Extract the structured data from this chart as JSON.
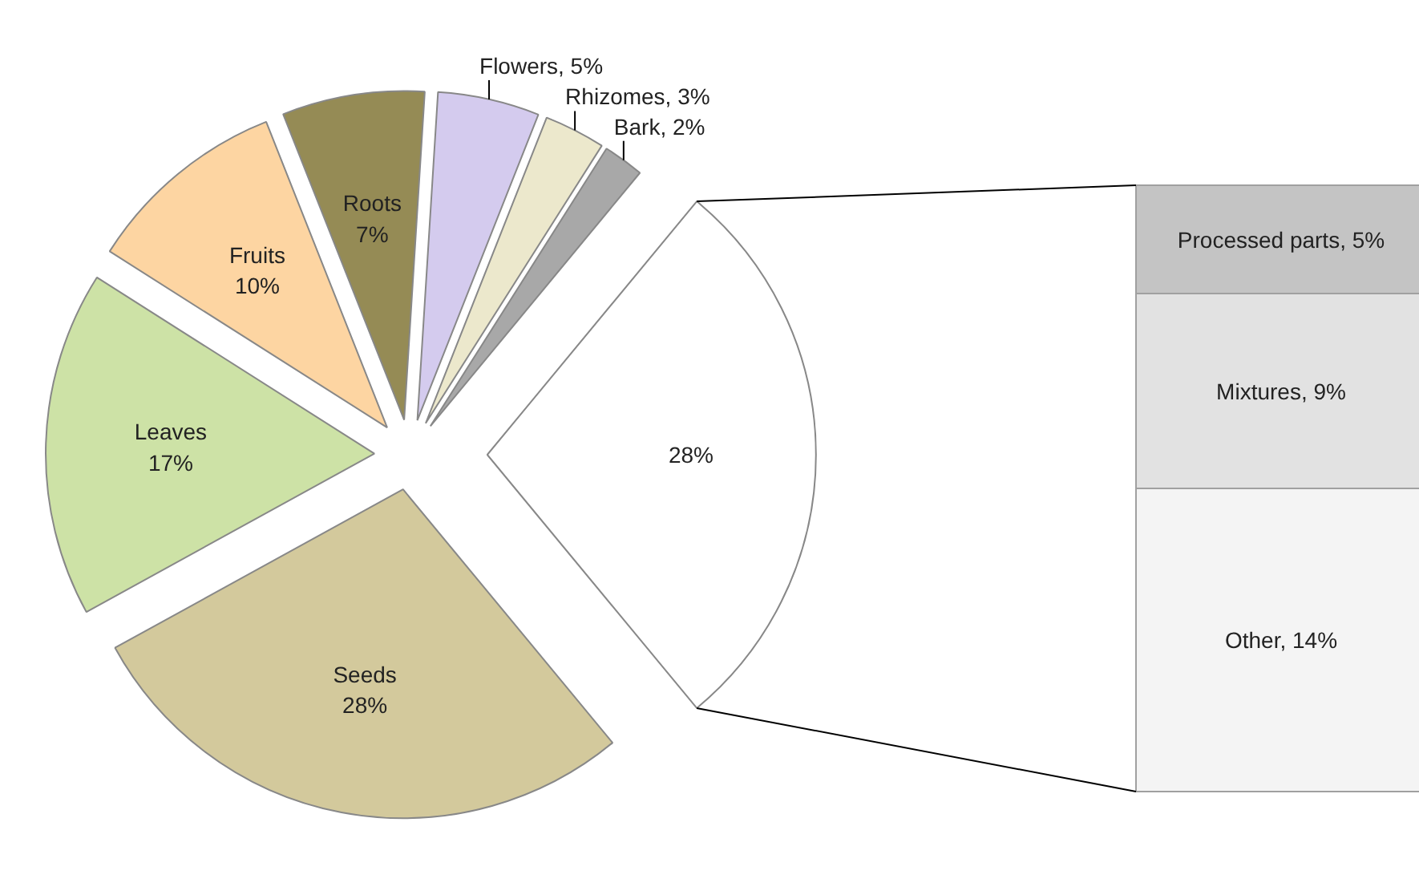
{
  "chart_data": [
    {
      "type": "pie",
      "categories": [
        "Seeds",
        "Leaves",
        "Fruits",
        "Roots",
        "Flowers",
        "Rhizomes",
        "Bark",
        null
      ],
      "values": [
        28,
        17,
        10,
        7,
        5,
        3,
        2,
        28
      ],
      "value_labels": [
        "28%",
        "17%",
        "10%",
        "7%",
        "5%",
        "3%",
        "2%",
        "28%"
      ],
      "colors": [
        "#d3c99c",
        "#cde2a6",
        "#fdd5a2",
        "#958b55",
        "#d4cbee",
        "#ece8cc",
        "#a8a8a8",
        "#ffffff"
      ]
    },
    {
      "type": "bar",
      "stacked": true,
      "categories": [
        null
      ],
      "series": [
        {
          "color": "#f4f4f4",
          "values": [
            14
          ],
          "value_labels": [
            "Other, 14%"
          ]
        },
        {
          "color": "#e2e2e2",
          "values": [
            9
          ],
          "value_labels": [
            "Mixtures, 9%"
          ]
        },
        {
          "color": "#c4c4c4",
          "values": [
            5
          ],
          "value_labels": [
            "Processed parts, 5%"
          ]
        }
      ]
    }
  ]
}
